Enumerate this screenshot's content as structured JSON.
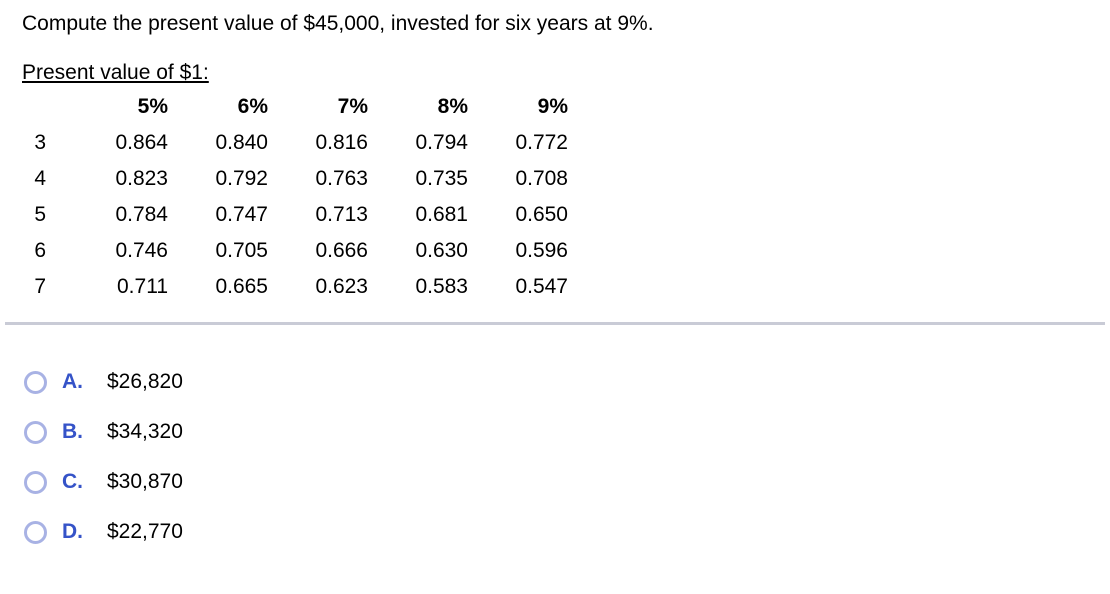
{
  "question": {
    "prompt": "Compute the present value of $45,000, invested for six years at 9%.",
    "table_title": "Present value of $1:"
  },
  "pv_table": {
    "column_headers": [
      "5%",
      "6%",
      "7%",
      "8%",
      "9%"
    ],
    "rows": [
      {
        "period": "3",
        "values": [
          "0.864",
          "0.840",
          "0.816",
          "0.794",
          "0.772"
        ]
      },
      {
        "period": "4",
        "values": [
          "0.823",
          "0.792",
          "0.763",
          "0.735",
          "0.708"
        ]
      },
      {
        "period": "5",
        "values": [
          "0.784",
          "0.747",
          "0.713",
          "0.681",
          "0.650"
        ]
      },
      {
        "period": "6",
        "values": [
          "0.746",
          "0.705",
          "0.666",
          "0.630",
          "0.596"
        ]
      },
      {
        "period": "7",
        "values": [
          "0.711",
          "0.665",
          "0.623",
          "0.583",
          "0.547"
        ]
      }
    ]
  },
  "options": [
    {
      "letter": "A.",
      "value": "$26,820"
    },
    {
      "letter": "B.",
      "value": "$34,320"
    },
    {
      "letter": "C.",
      "value": "$30,870"
    },
    {
      "letter": "D.",
      "value": "$22,770"
    }
  ],
  "colors": {
    "option_letter_blue": "#3553c8",
    "radio_border": "#a8b2e4",
    "divider_gray": "#c9cbd6"
  }
}
